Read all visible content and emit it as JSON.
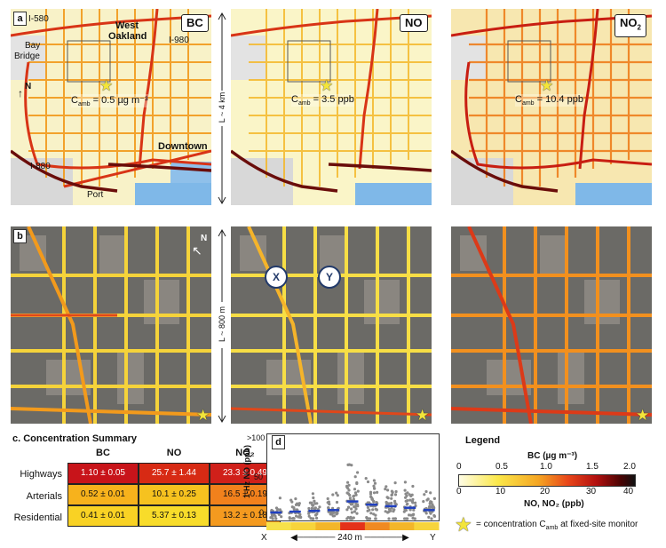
{
  "panel_a": {
    "label": "a",
    "maps": [
      {
        "tag": "BC",
        "camb_prefix": "C",
        "camb_sub": "amb",
        "camb_value": "= 0.5 µg m⁻³"
      },
      {
        "tag": "NO",
        "camb_prefix": "C",
        "camb_sub": "amb",
        "camb_value": "= 3.5 ppb"
      },
      {
        "tag": "NO",
        "tag_sub": "2",
        "camb_prefix": "C",
        "camb_sub": "amb",
        "camb_value": "= 10.4 ppb"
      }
    ],
    "places": {
      "i580": "I-580",
      "west_oakland_1": "West",
      "west_oakland_2": "Oakland",
      "i980": "I-980",
      "bay_bridge_1": "Bay",
      "bay_bridge_2": "Bridge",
      "north": "N",
      "downtown": "Downtown",
      "i880": "I-880",
      "port": "Port"
    },
    "scale": "L ~ 4 km"
  },
  "panel_b": {
    "label": "b",
    "north": "N",
    "scale": "L ~ 800 m",
    "point_x": "X",
    "point_y": "Y"
  },
  "panel_c": {
    "title": "c. Concentration Summary",
    "columns": [
      "BC",
      "NO",
      "NO₂"
    ],
    "rows": [
      {
        "label": "Highways",
        "values": [
          "1.10 ± 0.05",
          "25.7 ± 1.44",
          "23.3 ± 0.49"
        ],
        "colors": [
          "#c8141a",
          "#d72a14",
          "#d0201a"
        ]
      },
      {
        "label": "Arterials",
        "values": [
          "0.52 ± 0.01",
          "10.1 ± 0.25",
          "16.5 ± 0.19"
        ],
        "colors": [
          "#f7b21c",
          "#f6c21f",
          "#f2811c"
        ]
      },
      {
        "label": "Residential",
        "values": [
          "0.41 ± 0.01",
          "5.37 ± 0.13",
          "13.2 ± 0.18"
        ],
        "colors": [
          "#f9d224",
          "#f8dc2a",
          "#f49a1f"
        ]
      }
    ]
  },
  "panel_d": {
    "label": "d",
    "ylabel": "1-Hz NO (ppb)",
    "yticks": [
      ">100",
      "50",
      "0"
    ],
    "x_start": "X",
    "x_end": "Y",
    "distance": "240 m",
    "strip_colors": [
      "#f7e14a",
      "#f7d43c",
      "#f3b62a",
      "#e4321a",
      "#f08a22",
      "#f3b62a",
      "#f7d43c"
    ],
    "columns_medians": [
      8,
      9,
      10,
      11,
      22,
      18,
      16,
      14,
      11
    ]
  },
  "legend": {
    "title": "Legend",
    "bc_label": "BC (µg m⁻³)",
    "bc_ticks": [
      "0",
      "0.5",
      "1.0",
      "1.5",
      "2.0"
    ],
    "no_ticks": [
      "0",
      "10",
      "20",
      "30",
      "40"
    ],
    "no_label": "NO, NO₂ (ppb)",
    "star_text": "= concentration C",
    "star_sub": "amb",
    "star_text_end": " at fixed-site monitor"
  }
}
